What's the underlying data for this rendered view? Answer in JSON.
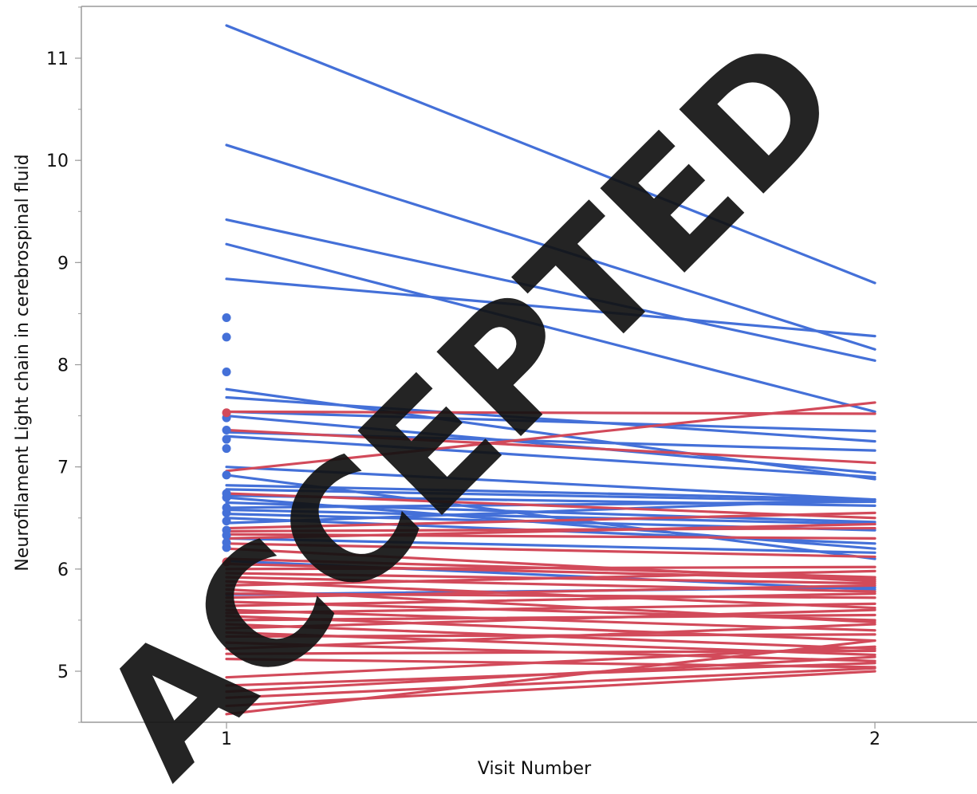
{
  "chart_data": {
    "type": "line",
    "xlabel": "Visit Number",
    "ylabel": "Neurofilament Light chain in cerebrospinal fluid",
    "x_ticks": [
      1,
      2
    ],
    "y_ticks": [
      5,
      6,
      7,
      8,
      9,
      10,
      11
    ],
    "xlim": [
      0.78,
      2.13
    ],
    "ylim": [
      4.5,
      11.5
    ],
    "grid": false,
    "legend": "none",
    "watermark": "ACCEPTED",
    "colors": {
      "group_blue": "#4470d8",
      "group_red": "#d24a5a",
      "watermark": "#c8c8c8"
    },
    "series": [
      {
        "group": "blue",
        "points": [
          [
            1,
            11.32
          ],
          [
            2,
            8.8
          ]
        ]
      },
      {
        "group": "blue",
        "points": [
          [
            1,
            10.15
          ],
          [
            2,
            8.15
          ]
        ]
      },
      {
        "group": "blue",
        "points": [
          [
            1,
            9.42
          ],
          [
            2,
            8.04
          ]
        ]
      },
      {
        "group": "blue",
        "points": [
          [
            1,
            9.18
          ],
          [
            2,
            7.54
          ]
        ]
      },
      {
        "group": "blue",
        "points": [
          [
            1,
            8.84
          ],
          [
            2,
            8.28
          ]
        ]
      },
      {
        "group": "blue",
        "points": [
          [
            1,
            7.76
          ],
          [
            2,
            6.88
          ]
        ]
      },
      {
        "group": "blue",
        "points": [
          [
            1,
            7.68
          ],
          [
            2,
            7.25
          ]
        ]
      },
      {
        "group": "blue",
        "points": [
          [
            1,
            7.54
          ],
          [
            2,
            7.35
          ]
        ]
      },
      {
        "group": "blue",
        "points": [
          [
            1,
            7.5
          ],
          [
            2,
            6.94
          ]
        ]
      },
      {
        "group": "blue",
        "points": [
          [
            1,
            7.34
          ],
          [
            2,
            7.16
          ]
        ]
      },
      {
        "group": "blue",
        "points": [
          [
            1,
            7.3
          ],
          [
            2,
            6.9
          ]
        ]
      },
      {
        "group": "blue",
        "points": [
          [
            1,
            7.0
          ],
          [
            2,
            6.68
          ]
        ]
      },
      {
        "group": "blue",
        "points": [
          [
            1,
            6.92
          ],
          [
            2,
            6.1
          ]
        ]
      },
      {
        "group": "blue",
        "points": [
          [
            1,
            6.82
          ],
          [
            2,
            6.68
          ]
        ]
      },
      {
        "group": "blue",
        "points": [
          [
            1,
            6.78
          ],
          [
            2,
            6.66
          ]
        ]
      },
      {
        "group": "blue",
        "points": [
          [
            1,
            6.72
          ],
          [
            2,
            6.62
          ]
        ]
      },
      {
        "group": "blue",
        "points": [
          [
            1,
            6.7
          ],
          [
            2,
            6.2
          ]
        ]
      },
      {
        "group": "blue",
        "points": [
          [
            1,
            6.65
          ],
          [
            2,
            6.46
          ]
        ]
      },
      {
        "group": "blue",
        "points": [
          [
            1,
            6.6
          ],
          [
            2,
            6.66
          ]
        ]
      },
      {
        "group": "blue",
        "points": [
          [
            1,
            6.58
          ],
          [
            2,
            6.44
          ]
        ]
      },
      {
        "group": "blue",
        "points": [
          [
            1,
            6.54
          ],
          [
            2,
            6.38
          ]
        ]
      },
      {
        "group": "blue",
        "points": [
          [
            1,
            6.5
          ],
          [
            2,
            6.25
          ]
        ]
      },
      {
        "group": "blue",
        "points": [
          [
            1,
            6.45
          ],
          [
            2,
            6.68
          ]
        ]
      },
      {
        "group": "blue",
        "points": [
          [
            1,
            6.3
          ],
          [
            2,
            6.16
          ]
        ]
      },
      {
        "group": "blue",
        "points": [
          [
            1,
            6.08
          ],
          [
            2,
            5.8
          ]
        ]
      },
      {
        "group": "blue",
        "points": [
          [
            1,
            5.75
          ],
          [
            2,
            5.82
          ]
        ]
      },
      {
        "group": "red",
        "points": [
          [
            1,
            7.54
          ],
          [
            2,
            7.52
          ]
        ]
      },
      {
        "group": "red",
        "points": [
          [
            1,
            7.36
          ],
          [
            2,
            7.04
          ]
        ]
      },
      {
        "group": "red",
        "points": [
          [
            1,
            6.96
          ],
          [
            2,
            7.63
          ]
        ]
      },
      {
        "group": "red",
        "points": [
          [
            1,
            6.74
          ],
          [
            2,
            6.5
          ]
        ]
      },
      {
        "group": "red",
        "points": [
          [
            1,
            6.4
          ],
          [
            2,
            6.55
          ]
        ]
      },
      {
        "group": "red",
        "points": [
          [
            1,
            6.37
          ],
          [
            2,
            6.4
          ]
        ]
      },
      {
        "group": "red",
        "points": [
          [
            1,
            6.34
          ],
          [
            2,
            6.3
          ]
        ]
      },
      {
        "group": "red",
        "points": [
          [
            1,
            6.3
          ],
          [
            2,
            6.44
          ]
        ]
      },
      {
        "group": "red",
        "points": [
          [
            1,
            6.25
          ],
          [
            2,
            6.12
          ]
        ]
      },
      {
        "group": "red",
        "points": [
          [
            1,
            6.2
          ],
          [
            2,
            5.88
          ]
        ]
      },
      {
        "group": "red",
        "points": [
          [
            1,
            6.1
          ],
          [
            2,
            5.92
          ]
        ]
      },
      {
        "group": "red",
        "points": [
          [
            1,
            6.05
          ],
          [
            2,
            5.9
          ]
        ]
      },
      {
        "group": "red",
        "points": [
          [
            1,
            6.0
          ],
          [
            2,
            6.02
          ]
        ]
      },
      {
        "group": "red",
        "points": [
          [
            1,
            5.96
          ],
          [
            2,
            5.86
          ]
        ]
      },
      {
        "group": "red",
        "points": [
          [
            1,
            5.92
          ],
          [
            2,
            5.78
          ]
        ]
      },
      {
        "group": "red",
        "points": [
          [
            1,
            5.88
          ],
          [
            2,
            5.62
          ]
        ]
      },
      {
        "group": "red",
        "points": [
          [
            1,
            5.84
          ],
          [
            2,
            5.98
          ]
        ]
      },
      {
        "group": "red",
        "points": [
          [
            1,
            5.8
          ],
          [
            2,
            5.48
          ]
        ]
      },
      {
        "group": "red",
        "points": [
          [
            1,
            5.76
          ],
          [
            2,
            5.72
          ]
        ]
      },
      {
        "group": "red",
        "points": [
          [
            1,
            5.72
          ],
          [
            2,
            5.84
          ]
        ]
      },
      {
        "group": "red",
        "points": [
          [
            1,
            5.68
          ],
          [
            2,
            5.5
          ]
        ]
      },
      {
        "group": "red",
        "points": [
          [
            1,
            5.64
          ],
          [
            2,
            5.76
          ]
        ]
      },
      {
        "group": "red",
        "points": [
          [
            1,
            5.6
          ],
          [
            2,
            5.4
          ]
        ]
      },
      {
        "group": "red",
        "points": [
          [
            1,
            5.57
          ],
          [
            2,
            5.66
          ]
        ]
      },
      {
        "group": "red",
        "points": [
          [
            1,
            5.54
          ],
          [
            2,
            5.3
          ]
        ]
      },
      {
        "group": "red",
        "points": [
          [
            1,
            5.5
          ],
          [
            2,
            5.55
          ]
        ]
      },
      {
        "group": "red",
        "points": [
          [
            1,
            5.46
          ],
          [
            2,
            5.22
          ]
        ]
      },
      {
        "group": "red",
        "points": [
          [
            1,
            5.42
          ],
          [
            2,
            5.6
          ]
        ]
      },
      {
        "group": "red",
        "points": [
          [
            1,
            5.38
          ],
          [
            2,
            5.16
          ]
        ]
      },
      {
        "group": "red",
        "points": [
          [
            1,
            5.34
          ],
          [
            2,
            5.36
          ]
        ]
      },
      {
        "group": "red",
        "points": [
          [
            1,
            5.28
          ],
          [
            2,
            5.1
          ]
        ]
      },
      {
        "group": "red",
        "points": [
          [
            1,
            5.22
          ],
          [
            2,
            5.46
          ]
        ]
      },
      {
        "group": "red",
        "points": [
          [
            1,
            5.17
          ],
          [
            2,
            5.2
          ]
        ]
      },
      {
        "group": "red",
        "points": [
          [
            1,
            5.12
          ],
          [
            2,
            5.04
          ]
        ]
      },
      {
        "group": "red",
        "points": [
          [
            1,
            4.94
          ],
          [
            2,
            5.24
          ]
        ]
      },
      {
        "group": "red",
        "points": [
          [
            1,
            4.86
          ],
          [
            2,
            5.08
          ]
        ]
      },
      {
        "group": "red",
        "points": [
          [
            1,
            4.8
          ],
          [
            2,
            5.14
          ]
        ]
      },
      {
        "group": "red",
        "points": [
          [
            1,
            4.74
          ],
          [
            2,
            5.03
          ]
        ]
      },
      {
        "group": "red",
        "points": [
          [
            1,
            4.66
          ],
          [
            2,
            5.0
          ]
        ]
      },
      {
        "group": "red",
        "points": [
          [
            1,
            4.58
          ],
          [
            2,
            5.3
          ]
        ]
      }
    ],
    "single_points": [
      {
        "group": "blue",
        "x": 1,
        "y": 8.46
      },
      {
        "group": "blue",
        "x": 1,
        "y": 8.27
      },
      {
        "group": "blue",
        "x": 1,
        "y": 7.93
      },
      {
        "group": "blue",
        "x": 1,
        "y": 7.48
      },
      {
        "group": "blue",
        "x": 1,
        "y": 7.36
      },
      {
        "group": "blue",
        "x": 1,
        "y": 7.27
      },
      {
        "group": "blue",
        "x": 1,
        "y": 7.18
      },
      {
        "group": "blue",
        "x": 1,
        "y": 6.92
      },
      {
        "group": "blue",
        "x": 1,
        "y": 6.74
      },
      {
        "group": "blue",
        "x": 1,
        "y": 6.7
      },
      {
        "group": "blue",
        "x": 1,
        "y": 6.6
      },
      {
        "group": "blue",
        "x": 1,
        "y": 6.55
      },
      {
        "group": "blue",
        "x": 1,
        "y": 6.47
      },
      {
        "group": "blue",
        "x": 1,
        "y": 6.38
      },
      {
        "group": "blue",
        "x": 1,
        "y": 6.33
      },
      {
        "group": "blue",
        "x": 1,
        "y": 6.26
      },
      {
        "group": "blue",
        "x": 1,
        "y": 6.21
      },
      {
        "group": "red",
        "x": 1,
        "y": 7.53
      },
      {
        "group": "red",
        "x": 1,
        "y": 6.07
      }
    ]
  }
}
